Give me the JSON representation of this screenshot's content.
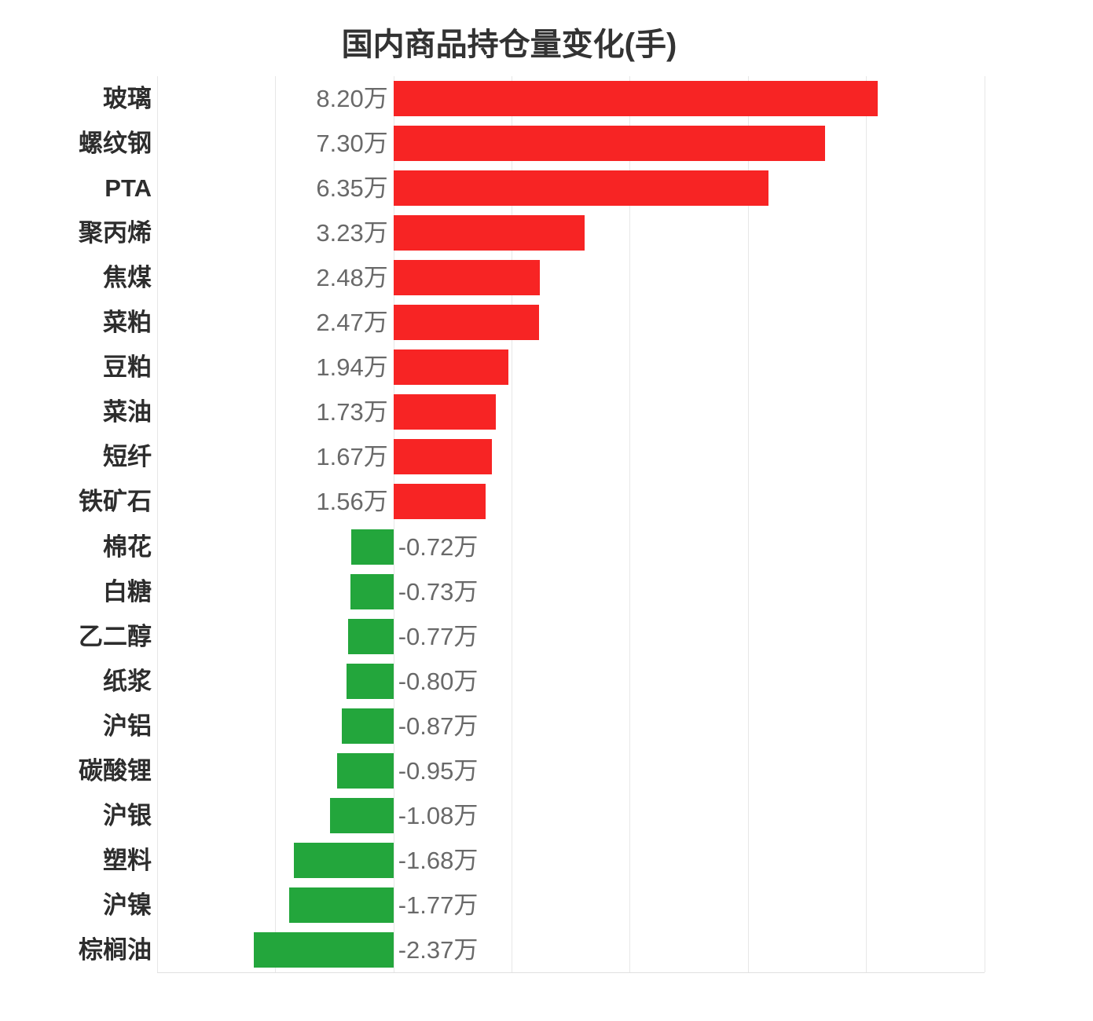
{
  "chart_data": {
    "type": "bar",
    "orientation": "horizontal",
    "title": "国内商品持仓量变化(手)",
    "unit": "万",
    "categories": [
      "玻璃",
      "螺纹钢",
      "PTA",
      "聚丙烯",
      "焦煤",
      "菜粕",
      "豆粕",
      "菜油",
      "短纤",
      "铁矿石",
      "棉花",
      "白糖",
      "乙二醇",
      "纸浆",
      "沪铝",
      "碳酸锂",
      "沪银",
      "塑料",
      "沪镍",
      "棕榈油"
    ],
    "values": [
      8.2,
      7.3,
      6.35,
      3.23,
      2.48,
      2.47,
      1.94,
      1.73,
      1.67,
      1.56,
      -0.72,
      -0.73,
      -0.77,
      -0.8,
      -0.87,
      -0.95,
      -1.08,
      -1.68,
      -1.77,
      -2.37
    ],
    "value_labels": [
      "8.20万",
      "7.30万",
      "6.35万",
      "3.23万",
      "2.48万",
      "2.47万",
      "1.94万",
      "1.73万",
      "1.67万",
      "1.56万",
      "-0.72万",
      "-0.73万",
      "-0.77万",
      "-0.80万",
      "-0.87万",
      "-0.95万",
      "-1.08万",
      "-1.68万",
      "-1.77万",
      "-2.37万"
    ],
    "xlim": [
      -4,
      10
    ],
    "grid_step": 2,
    "grid": true,
    "legend": "none",
    "xaxis_tick_labels_visible": false,
    "colors": {
      "positive_bar": "#f72424",
      "negative_bar": "#23a63c",
      "title_text": "#333333",
      "category_text": "#2d2d2d",
      "value_text": "#696969",
      "gridline": "#e7e7e7",
      "axis_line": "#e0e0e0"
    }
  }
}
